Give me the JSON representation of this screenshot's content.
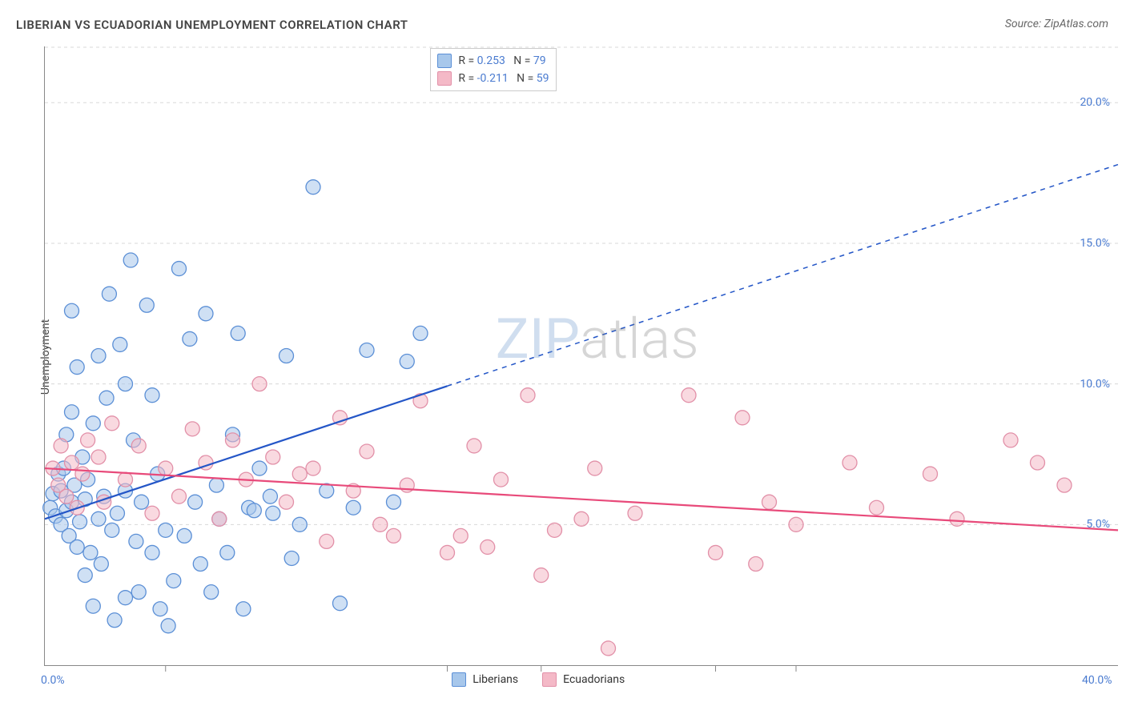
{
  "title": "LIBERIAN VS ECUADORIAN UNEMPLOYMENT CORRELATION CHART",
  "source": "Source: ZipAtlas.com",
  "ylabel": "Unemployment",
  "watermark_zip": "ZIP",
  "watermark_atlas": "atlas",
  "chart": {
    "type": "scatter",
    "background_color": "#ffffff",
    "grid_color": "#d8d8d8",
    "grid_dash": "4,4",
    "axis_color": "#888888",
    "xlim": [
      0,
      40
    ],
    "ylim": [
      0,
      22
    ],
    "xtick_labels": [
      {
        "x": 0.0,
        "label": "0.0%"
      },
      {
        "x": 40.0,
        "label": "40.0%"
      }
    ],
    "ytick_labels": [
      {
        "y": 5.0,
        "label": "5.0%"
      },
      {
        "y": 10.0,
        "label": "10.0%"
      },
      {
        "y": 15.0,
        "label": "15.0%"
      },
      {
        "y": 20.0,
        "label": "20.0%"
      }
    ],
    "xtick_minor": [
      4.5,
      15,
      18.5,
      25,
      28
    ],
    "marker_radius": 9,
    "marker_stroke_width": 1.3,
    "series": [
      {
        "name": "Liberians",
        "fill": "#a7c7eb",
        "fill_opacity": 0.55,
        "stroke": "#5b8fd6",
        "points": [
          [
            0.2,
            5.6
          ],
          [
            0.3,
            6.1
          ],
          [
            0.4,
            5.3
          ],
          [
            0.5,
            6.8
          ],
          [
            0.6,
            5.0
          ],
          [
            0.6,
            6.2
          ],
          [
            0.7,
            7.0
          ],
          [
            0.8,
            5.5
          ],
          [
            0.8,
            8.2
          ],
          [
            0.9,
            4.6
          ],
          [
            1.0,
            5.8
          ],
          [
            1.0,
            9.0
          ],
          [
            1.1,
            6.4
          ],
          [
            1.2,
            4.2
          ],
          [
            1.2,
            10.6
          ],
          [
            1.3,
            5.1
          ],
          [
            1.4,
            7.4
          ],
          [
            1.5,
            3.2
          ],
          [
            1.5,
            5.9
          ],
          [
            1.6,
            6.6
          ],
          [
            1.7,
            4.0
          ],
          [
            1.8,
            8.6
          ],
          [
            1.8,
            2.1
          ],
          [
            2.0,
            5.2
          ],
          [
            2.0,
            11.0
          ],
          [
            2.1,
            3.6
          ],
          [
            2.2,
            6.0
          ],
          [
            2.3,
            9.5
          ],
          [
            2.4,
            13.2
          ],
          [
            2.5,
            4.8
          ],
          [
            2.6,
            1.6
          ],
          [
            2.7,
            5.4
          ],
          [
            2.8,
            11.4
          ],
          [
            3.0,
            6.2
          ],
          [
            3.0,
            2.4
          ],
          [
            3.2,
            14.4
          ],
          [
            3.3,
            8.0
          ],
          [
            3.4,
            4.4
          ],
          [
            3.5,
            2.6
          ],
          [
            3.6,
            5.8
          ],
          [
            3.8,
            12.8
          ],
          [
            4.0,
            9.6
          ],
          [
            4.0,
            4.0
          ],
          [
            4.2,
            6.8
          ],
          [
            4.3,
            2.0
          ],
          [
            4.5,
            4.8
          ],
          [
            4.6,
            1.4
          ],
          [
            5.0,
            14.1
          ],
          [
            5.2,
            4.6
          ],
          [
            5.4,
            11.6
          ],
          [
            5.6,
            5.8
          ],
          [
            5.8,
            3.6
          ],
          [
            6.0,
            12.5
          ],
          [
            6.2,
            2.6
          ],
          [
            6.4,
            6.4
          ],
          [
            6.5,
            5.2
          ],
          [
            6.8,
            4.0
          ],
          [
            7.0,
            8.2
          ],
          [
            7.2,
            11.8
          ],
          [
            7.4,
            2.0
          ],
          [
            7.6,
            5.6
          ],
          [
            8.0,
            7.0
          ],
          [
            8.4,
            6.0
          ],
          [
            8.5,
            5.4
          ],
          [
            9.0,
            11.0
          ],
          [
            9.2,
            3.8
          ],
          [
            9.5,
            5.0
          ],
          [
            10.0,
            17.0
          ],
          [
            10.5,
            6.2
          ],
          [
            11.0,
            2.2
          ],
          [
            11.5,
            5.6
          ],
          [
            12.0,
            11.2
          ],
          [
            13.0,
            5.8
          ],
          [
            13.5,
            10.8
          ],
          [
            14.0,
            11.8
          ],
          [
            7.8,
            5.5
          ],
          [
            4.8,
            3.0
          ],
          [
            3.0,
            10.0
          ],
          [
            1.0,
            12.6
          ]
        ],
        "trend": {
          "y_at_x0": 5.2,
          "y_at_xmax": 17.8,
          "color": "#2456c7",
          "width": 2.2,
          "solid_until_x": 15.0
        }
      },
      {
        "name": "Ecuadorians",
        "fill": "#f4b9c7",
        "fill_opacity": 0.55,
        "stroke": "#e290a8",
        "points": [
          [
            0.3,
            7.0
          ],
          [
            0.5,
            6.4
          ],
          [
            0.6,
            7.8
          ],
          [
            0.8,
            6.0
          ],
          [
            1.0,
            7.2
          ],
          [
            1.2,
            5.6
          ],
          [
            1.4,
            6.8
          ],
          [
            1.6,
            8.0
          ],
          [
            2.0,
            7.4
          ],
          [
            2.2,
            5.8
          ],
          [
            2.5,
            8.6
          ],
          [
            3.0,
            6.6
          ],
          [
            3.5,
            7.8
          ],
          [
            4.0,
            5.4
          ],
          [
            4.5,
            7.0
          ],
          [
            5.0,
            6.0
          ],
          [
            5.5,
            8.4
          ],
          [
            6.0,
            7.2
          ],
          [
            6.5,
            5.2
          ],
          [
            7.0,
            8.0
          ],
          [
            7.5,
            6.6
          ],
          [
            8.0,
            10.0
          ],
          [
            8.5,
            7.4
          ],
          [
            9.0,
            5.8
          ],
          [
            9.5,
            6.8
          ],
          [
            10.0,
            7.0
          ],
          [
            10.5,
            4.4
          ],
          [
            11.0,
            8.8
          ],
          [
            11.5,
            6.2
          ],
          [
            12.0,
            7.6
          ],
          [
            12.5,
            5.0
          ],
          [
            13.0,
            4.6
          ],
          [
            13.5,
            6.4
          ],
          [
            14.0,
            9.4
          ],
          [
            15.0,
            4.0
          ],
          [
            15.5,
            4.6
          ],
          [
            16.0,
            7.8
          ],
          [
            16.5,
            4.2
          ],
          [
            17.0,
            6.6
          ],
          [
            18.0,
            9.6
          ],
          [
            18.5,
            3.2
          ],
          [
            19.0,
            4.8
          ],
          [
            20.0,
            5.2
          ],
          [
            20.5,
            7.0
          ],
          [
            21.0,
            0.6
          ],
          [
            22.0,
            5.4
          ],
          [
            24.0,
            9.6
          ],
          [
            25.0,
            4.0
          ],
          [
            26.0,
            8.8
          ],
          [
            26.5,
            3.6
          ],
          [
            27.0,
            5.8
          ],
          [
            28.0,
            5.0
          ],
          [
            30.0,
            7.2
          ],
          [
            31.0,
            5.6
          ],
          [
            33.0,
            6.8
          ],
          [
            34.0,
            5.2
          ],
          [
            36.0,
            8.0
          ],
          [
            37.0,
            7.2
          ],
          [
            38.0,
            6.4
          ]
        ],
        "trend": {
          "y_at_x0": 7.0,
          "y_at_xmax": 4.8,
          "color": "#e84a7a",
          "width": 2.2,
          "solid_until_x": 40.0
        }
      }
    ],
    "legend_top": {
      "rows": [
        {
          "swatch_fill": "#a7c7eb",
          "swatch_stroke": "#5b8fd6",
          "r_label": "R = ",
          "r_value": "0.253",
          "n_label": "N = ",
          "n_value": "79"
        },
        {
          "swatch_fill": "#f4b9c7",
          "swatch_stroke": "#e290a8",
          "r_label": "R = ",
          "r_value": "-0.211",
          "n_label": "N = ",
          "n_value": "59"
        }
      ],
      "value_color": "#4a7bd0",
      "label_color": "#444444"
    },
    "legend_bottom": [
      {
        "swatch_fill": "#a7c7eb",
        "swatch_stroke": "#5b8fd6",
        "label": "Liberians"
      },
      {
        "swatch_fill": "#f4b9c7",
        "swatch_stroke": "#e290a8",
        "label": "Ecuadorians"
      }
    ]
  }
}
